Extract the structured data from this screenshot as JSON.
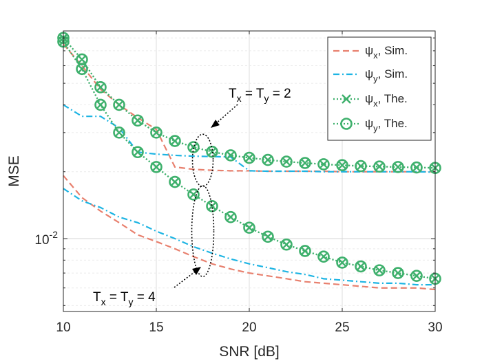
{
  "chart_data": {
    "type": "line",
    "xlabel": "SNR [dB]",
    "ylabel": "MSE",
    "xlim": [
      10,
      30
    ],
    "xticks": [
      10,
      15,
      20,
      25,
      30
    ],
    "xtick_labels": [
      "10",
      "15",
      "20",
      "25",
      "30"
    ],
    "ylim": [
      0.0047,
      0.086
    ],
    "yscale": "log",
    "yticks": [
      0.01
    ],
    "ytick_labels": [
      "10",
      "-2"
    ],
    "grid": true,
    "legend_position": "top-right",
    "colors": {
      "sim_x": "#e8806e",
      "sim_y": "#1db4e3",
      "theory": "#3eb06c"
    },
    "legend": [
      {
        "symbol": "ψ",
        "sub": "x",
        "suffix": ", Sim.",
        "style": "dashed"
      },
      {
        "symbol": "ψ",
        "sub": "y",
        "suffix": ", Sim.",
        "style": "dashdot"
      },
      {
        "symbol": "ψ",
        "sub": "x",
        "suffix": ", The.",
        "style": "dotted-x"
      },
      {
        "symbol": "ψ",
        "sub": "y",
        "suffix": ", The.",
        "style": "dotted-o"
      }
    ],
    "x": [
      10,
      11,
      12,
      13,
      14,
      15,
      16,
      17,
      18,
      19,
      20,
      21,
      22,
      23,
      24,
      25,
      26,
      27,
      28,
      29,
      30
    ],
    "series": [
      {
        "name": "ψx, Sim. (Tx = Ty = 2)",
        "kind": "sim_x",
        "values": [
          0.075,
          0.06,
          0.047,
          0.04,
          0.035,
          0.031,
          0.021,
          0.0205,
          0.0203,
          0.0202,
          0.0202,
          0.0201,
          0.0201,
          0.0201,
          0.0201,
          0.02,
          0.02,
          0.02,
          0.02,
          0.02,
          0.02
        ]
      },
      {
        "name": "ψy, Sim. (Tx = Ty = 2)",
        "kind": "sim_y",
        "values": [
          0.04,
          0.0355,
          0.0355,
          0.0315,
          0.0245,
          0.024,
          0.0237,
          0.0235,
          0.0234,
          0.0233,
          0.0202,
          0.0201,
          0.0201,
          0.0201,
          0.02,
          0.02,
          0.02,
          0.02,
          0.02,
          0.02,
          0.0199
        ]
      },
      {
        "name": "ψx, The. (Tx = Ty = 2)",
        "kind": "theory_x",
        "values": [
          0.08,
          0.064,
          0.048,
          0.04,
          0.034,
          0.03,
          0.0275,
          0.0258,
          0.0246,
          0.0237,
          0.0231,
          0.0226,
          0.0222,
          0.0219,
          0.0216,
          0.0214,
          0.0212,
          0.0211,
          0.021,
          0.0209,
          0.0208
        ]
      },
      {
        "name": "ψy, The. (Tx = Ty = 2)",
        "kind": "theory_y",
        "values": [
          0.08,
          0.064,
          0.048,
          0.04,
          0.034,
          0.03,
          0.0275,
          0.0258,
          0.0246,
          0.0237,
          0.0231,
          0.0226,
          0.0222,
          0.0219,
          0.0216,
          0.0214,
          0.0212,
          0.0211,
          0.021,
          0.0209,
          0.0208
        ]
      },
      {
        "name": "ψx, Sim. (Tx = Ty = 4)",
        "kind": "sim_x",
        "values": [
          0.0192,
          0.0153,
          0.0133,
          0.0118,
          0.0104,
          0.0097,
          0.009,
          0.0083,
          0.0077,
          0.0073,
          0.007,
          0.0068,
          0.0066,
          0.0064,
          0.0063,
          0.0062,
          0.0061,
          0.006,
          0.006,
          0.006,
          0.0059
        ]
      },
      {
        "name": "ψy, Sim. (Tx = Ty = 4)",
        "kind": "sim_y",
        "values": [
          0.0168,
          0.0148,
          0.0138,
          0.0125,
          0.0118,
          0.0108,
          0.01,
          0.0092,
          0.0086,
          0.0081,
          0.0077,
          0.0074,
          0.0071,
          0.0069,
          0.0066,
          0.0065,
          0.0064,
          0.0063,
          0.0063,
          0.0062,
          0.0062
        ]
      },
      {
        "name": "ψx, The. (Tx = Ty = 4)",
        "kind": "theory_x",
        "values": [
          0.077,
          0.058,
          0.04,
          0.03,
          0.0245,
          0.021,
          0.018,
          0.0158,
          0.014,
          0.0125,
          0.0112,
          0.0102,
          0.0094,
          0.0088,
          0.0083,
          0.0078,
          0.0075,
          0.0072,
          0.007,
          0.0068,
          0.0066
        ]
      },
      {
        "name": "ψy, The. (Tx = Ty = 4)",
        "kind": "theory_y",
        "values": [
          0.077,
          0.058,
          0.04,
          0.03,
          0.0245,
          0.021,
          0.018,
          0.0158,
          0.014,
          0.0125,
          0.0112,
          0.0102,
          0.0094,
          0.0088,
          0.0083,
          0.0078,
          0.0075,
          0.0072,
          0.007,
          0.0068,
          0.0066
        ]
      }
    ],
    "annotations": [
      {
        "base": "T",
        "sub1": "x",
        "mid": " = T",
        "sub2": "y",
        "tail": " = 2",
        "ellipse_center": [
          17.5,
          0.0225
        ]
      },
      {
        "base": "T",
        "sub1": "x",
        "mid": " = T",
        "sub2": "y",
        "tail": " = 4",
        "ellipse_center": [
          17.5,
          0.0108
        ]
      }
    ]
  }
}
